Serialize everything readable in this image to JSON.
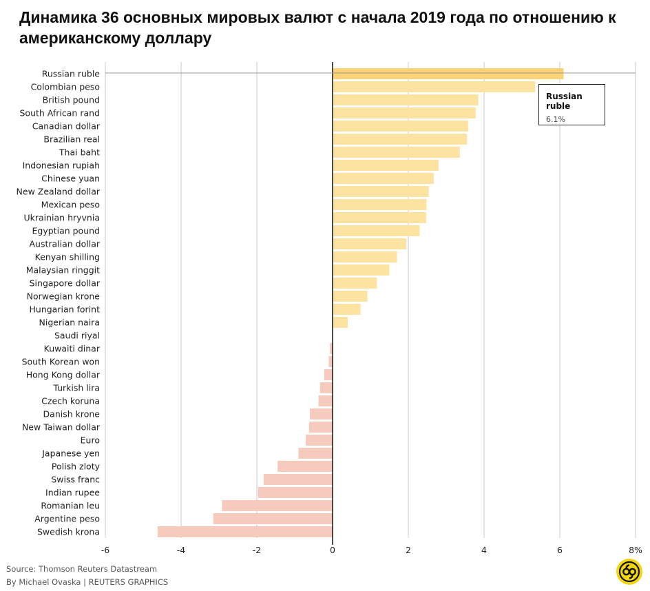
{
  "title": "Динамика 36 основных мировых валют с начала 2019 года по отношению к американскому доллару",
  "tooltip": {
    "name": "Russian ruble",
    "value": "6.1%"
  },
  "footer": {
    "source": "Source: Thomson Reuters Datastream",
    "byline": "By Michael Ovaska | REUTERS GRAPHICS"
  },
  "logo_icon": "reuters-graphics-logo-icon",
  "colors": {
    "positive": "#fde3a2",
    "highlight": "#fcd477",
    "negative": "#f6cabc",
    "grid": "#c8c8c8",
    "axis": "#111111"
  },
  "chart_data": {
    "type": "bar",
    "orientation": "horizontal",
    "title": "Динамика 36 основных мировых валют с начала 2019 года по отношению к американскому доллару",
    "xlabel": "",
    "ylabel": "",
    "xlim": [
      -6,
      8
    ],
    "xticks": [
      -6,
      -4,
      -2,
      0,
      2,
      4,
      6,
      8
    ],
    "xtick_labels": [
      "-6",
      "-4",
      "-2",
      "0",
      "2",
      "4",
      "6",
      "8%"
    ],
    "grid": true,
    "highlighted": "Russian ruble",
    "categories": [
      "Russian ruble",
      "Colombian peso",
      "British pound",
      "South African rand",
      "Canadian dollar",
      "Brazilian real",
      "Thai baht",
      "Indonesian rupiah",
      "Chinese yuan",
      "New Zealand dollar",
      "Mexican peso",
      "Ukrainian hryvnia",
      "Egyptian pound",
      "Australian dollar",
      "Kenyan shilling",
      "Malaysian ringgit",
      "Singapore dollar",
      "Norwegian krone",
      "Hungarian forint",
      "Nigerian naira",
      "Saudi riyal",
      "Kuwaiti dinar",
      "South Korean won",
      "Hong Kong dollar",
      "Turkish lira",
      "Czech koruna",
      "Danish krone",
      "New Taiwan dollar",
      "Euro",
      "Japanese yen",
      "Polish zloty",
      "Swiss franc",
      "Indian rupee",
      "Romanian leu",
      "Argentine peso",
      "Swedish krona"
    ],
    "values": [
      6.1,
      5.35,
      3.85,
      3.78,
      3.58,
      3.55,
      3.36,
      2.8,
      2.67,
      2.54,
      2.48,
      2.47,
      2.3,
      1.95,
      1.7,
      1.5,
      1.17,
      0.92,
      0.74,
      0.4,
      0.0,
      -0.07,
      -0.1,
      -0.22,
      -0.33,
      -0.37,
      -0.6,
      -0.62,
      -0.71,
      -0.9,
      -1.45,
      -1.82,
      -1.97,
      -2.92,
      -3.15,
      -4.62
    ]
  }
}
